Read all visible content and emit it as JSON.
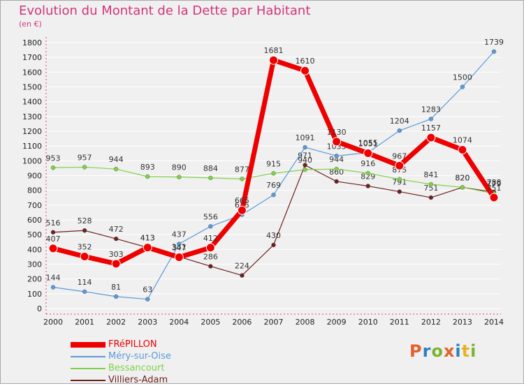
{
  "header": {
    "title": "Evolution du Montant de la Dette par Habitant",
    "subtitle": "(en €)"
  },
  "brand": {
    "text": "Proxiti",
    "colors": [
      "#e3612a",
      "#2d7fc1",
      "#79b52e",
      "#e3612a",
      "#2d7fc1",
      "#e8b21e",
      "#79b52e"
    ]
  },
  "chart_data": {
    "type": "line",
    "title": "Evolution du Montant de la Dette par Habitant",
    "subtitle": "(en €)",
    "xlabel": "",
    "ylabel": "",
    "ylim": [
      0,
      1800
    ],
    "y_ticks": [
      0,
      100,
      200,
      300,
      400,
      500,
      600,
      700,
      800,
      900,
      1000,
      1100,
      1200,
      1300,
      1400,
      1500,
      1600,
      1700,
      1800
    ],
    "x": [
      "2000",
      "2001",
      "2002",
      "2003",
      "2004",
      "2005",
      "2006",
      "2007",
      "2008",
      "2009",
      "2010",
      "2011",
      "2012",
      "2013",
      "2014"
    ],
    "grid": "horizontal",
    "legend_position": "bottom-left",
    "series": [
      {
        "name": "Villiers-Adam",
        "color": "#6e1f1f",
        "values": [
          516,
          528,
          472,
          413,
          351,
          286,
          224,
          430,
          971,
          860,
          829,
          791,
          751,
          820,
          788
        ]
      },
      {
        "name": "Bessancourt",
        "color": "#7fd14a",
        "values": [
          953,
          957,
          944,
          893,
          890,
          884,
          877,
          915,
          940,
          944,
          916,
          875,
          841,
          820,
          779
        ]
      },
      {
        "name": "Méry-sur-Oise",
        "color": "#5a9ad8",
        "values": [
          144,
          114,
          81,
          63,
          437,
          556,
          635,
          769,
          1091,
          1033,
          1055,
          1204,
          1283,
          1500,
          1739
        ]
      },
      {
        "name": "FRéPILLON",
        "color": "#ee0000",
        "values": [
          407,
          352,
          303,
          413,
          347,
          412,
          665,
          1681,
          1610,
          1130,
          1051,
          967,
          1157,
          1074,
          751
        ]
      }
    ]
  }
}
